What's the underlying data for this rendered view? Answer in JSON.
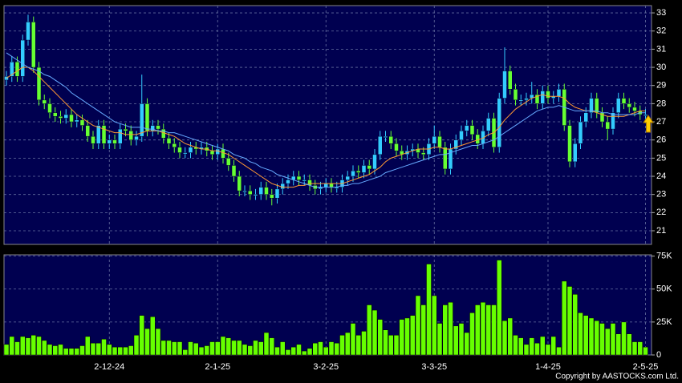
{
  "chart_data": [
    {
      "type": "candlestick",
      "up_color": "#33ccff",
      "down_color": "#66ff33",
      "open": [
        29.3,
        29.5,
        30.3,
        29.5,
        31.5,
        32.5,
        30,
        28.2,
        28,
        27.5,
        27.3,
        27.2,
        27.4,
        27,
        27.1,
        26.8,
        26.2,
        25.8,
        26.8,
        25.8,
        26,
        25.8,
        26.6,
        26.5,
        26,
        26.2,
        28,
        26.5,
        26.8,
        26.6,
        26.1,
        25.8,
        25.6,
        25.3,
        25.3,
        25.6,
        25.5,
        25.6,
        25.4,
        25.2,
        25.5,
        25,
        24.6,
        24,
        23.2,
        23.2,
        23,
        23,
        23.4,
        23,
        22.8,
        23.3,
        23.6,
        23.8,
        24,
        23.8,
        23.8,
        23.5,
        23.3,
        23.4,
        23.6,
        23.4,
        23.4,
        23.8,
        24,
        24.3,
        24.2,
        24.6,
        24.4,
        25.2,
        26.2,
        26.2,
        25.8,
        25.4,
        25.2,
        25.4,
        25.5,
        25.3,
        25.2,
        25.8,
        26.2,
        25.6,
        24.4,
        25.5,
        26,
        26.5,
        26.8,
        26.3,
        25.8,
        26.5,
        27.2,
        25.6,
        28.3,
        29.8,
        28.8,
        28.2,
        28.2,
        28.3,
        28.5,
        28,
        28.7,
        28.3,
        28.4,
        28.8,
        26.8,
        24.8,
        25.8,
        27,
        27.5,
        28.3,
        27.5,
        27,
        26.6,
        27.5,
        28.3,
        28,
        27.8,
        27.6,
        27.4
      ],
      "high": [
        29.8,
        30.6,
        30.6,
        31.8,
        32.9,
        32.8,
        30.3,
        28.5,
        28.3,
        27.8,
        27.6,
        27.7,
        27.7,
        27.4,
        27.4,
        27.1,
        26.5,
        27.1,
        27.1,
        26.3,
        26.3,
        26.9,
        26.9,
        26.8,
        26.5,
        29.6,
        28.3,
        27.1,
        27.1,
        26.9,
        26.4,
        26.1,
        25.9,
        25.6,
        25.9,
        25.9,
        25.9,
        25.9,
        25.7,
        25.8,
        25.8,
        25.3,
        24.9,
        24.3,
        23.5,
        23.5,
        23.3,
        23.7,
        23.7,
        23.3,
        23.6,
        23.9,
        24.1,
        24.3,
        24.3,
        24.1,
        24.1,
        23.8,
        23.7,
        23.9,
        23.9,
        23.7,
        24.1,
        24.3,
        24.6,
        24.6,
        24.9,
        24.9,
        25.5,
        26.5,
        26.5,
        26.5,
        26.1,
        25.7,
        25.7,
        25.8,
        25.8,
        25.6,
        26.1,
        26.8,
        26.5,
        25.9,
        25.8,
        26.3,
        26.8,
        27.1,
        27.1,
        26.6,
        26.8,
        27.5,
        27.5,
        28.6,
        31.1,
        30.1,
        29.1,
        28.5,
        28.6,
        29.2,
        28.8,
        29.0,
        29.0,
        28.7,
        29.1,
        29.1,
        27.1,
        26.1,
        27.3,
        27.8,
        28.6,
        28.6,
        27.8,
        27.3,
        27.8,
        28.6,
        28.6,
        28.3,
        28.1,
        27.9,
        27.7
      ],
      "low": [
        29.0,
        29.2,
        29.2,
        29.2,
        31.2,
        29.7,
        27.9,
        27.7,
        27.2,
        27.0,
        26.9,
        26.9,
        26.7,
        26.7,
        26.5,
        25.9,
        25.5,
        25.5,
        25.5,
        25.5,
        25.5,
        25.5,
        26.2,
        25.7,
        25.7,
        25.9,
        26.2,
        26.2,
        26.3,
        25.8,
        25.5,
        25.3,
        25.0,
        25.0,
        25.0,
        25.2,
        25.2,
        25.1,
        24.9,
        24.9,
        24.7,
        24.3,
        23.7,
        22.9,
        22.9,
        22.7,
        22.7,
        22.7,
        22.7,
        22.4,
        22.5,
        23.0,
        23.3,
        23.5,
        23.5,
        23.5,
        23.2,
        23.0,
        23.0,
        23.1,
        23.1,
        23.1,
        23.1,
        23.5,
        23.7,
        23.9,
        23.9,
        24.1,
        24.1,
        24.9,
        25.9,
        25.5,
        25.1,
        24.9,
        24.9,
        25.1,
        25.0,
        24.9,
        24.9,
        25.5,
        25.3,
        24.1,
        24.1,
        25.2,
        25.7,
        26.2,
        26.0,
        25.5,
        25.5,
        26.2,
        25.3,
        25.3,
        28.0,
        28.5,
        27.9,
        27.9,
        27.9,
        28.0,
        27.7,
        27.7,
        28.0,
        28.0,
        28.1,
        26.5,
        24.5,
        24.5,
        25.5,
        26.7,
        27.2,
        27.2,
        26.7,
        26.0,
        26.3,
        27.2,
        27.7,
        27.5,
        27.3,
        27.1,
        27.1
      ],
      "close": [
        29.5,
        30.3,
        29.5,
        31.5,
        32.5,
        30,
        28.2,
        28,
        27.5,
        27.3,
        27.2,
        27.4,
        27,
        27.1,
        26.8,
        26.2,
        25.8,
        26.8,
        25.8,
        26,
        25.8,
        26.6,
        26.5,
        26,
        26.2,
        28,
        26.5,
        26.8,
        26.6,
        26.1,
        25.8,
        25.6,
        25.3,
        25.3,
        25.6,
        25.5,
        25.6,
        25.4,
        25.2,
        25.5,
        25,
        24.6,
        24,
        23.2,
        23.2,
        23,
        23,
        23.4,
        23,
        22.8,
        23.3,
        23.6,
        23.8,
        24,
        23.8,
        23.8,
        23.5,
        23.3,
        23.4,
        23.6,
        23.4,
        23.4,
        23.8,
        24,
        24.3,
        24.2,
        24.6,
        24.4,
        25.2,
        26.2,
        26.2,
        25.8,
        25.4,
        25.2,
        25.4,
        25.5,
        25.3,
        25.2,
        25.8,
        26.2,
        25.6,
        24.4,
        25.5,
        26,
        26.5,
        26.8,
        26.3,
        25.8,
        26.5,
        27.2,
        25.6,
        28.3,
        29.8,
        28.8,
        28.2,
        28.2,
        28.3,
        28.5,
        28,
        28.7,
        28.3,
        28.4,
        28.8,
        26.8,
        24.8,
        25.8,
        27,
        27.5,
        28.3,
        27.5,
        27,
        26.6,
        27.5,
        28.3,
        28,
        27.8,
        27.6,
        27.4,
        27.4
      ],
      "series": [
        {
          "color": "#ff9933",
          "values": [
            29.4,
            29.6,
            29.8,
            30.0,
            30.0,
            29.8,
            29.5,
            29.2,
            28.9,
            28.6,
            28.3,
            28.0,
            27.7,
            27.4,
            27.2,
            27.0,
            26.8,
            26.7,
            26.6,
            26.5,
            26.4,
            26.4,
            26.3,
            26.3,
            26.3,
            26.4,
            26.5,
            26.5,
            26.5,
            26.4,
            26.3,
            26.2,
            26.0,
            25.8,
            25.7,
            25.6,
            25.5,
            25.5,
            25.4,
            25.4,
            25.3,
            25.2,
            25.0,
            24.8,
            24.6,
            24.4,
            24.2,
            24.0,
            23.8,
            23.6,
            23.5,
            23.4,
            23.4,
            23.4,
            23.5,
            23.5,
            23.6,
            23.6,
            23.6,
            23.6,
            23.6,
            23.6,
            23.6,
            23.7,
            23.8,
            23.9,
            24.0,
            24.1,
            24.3,
            24.5,
            24.8,
            25.0,
            25.1,
            25.2,
            25.3,
            25.4,
            25.5,
            25.5,
            25.5,
            25.6,
            25.6,
            25.5,
            25.5,
            25.6,
            25.7,
            25.8,
            25.9,
            26.0,
            26.1,
            26.3,
            26.4,
            26.7,
            27.1,
            27.4,
            27.7,
            27.9,
            28.1,
            28.3,
            28.4,
            28.5,
            28.4,
            28.4,
            28.4,
            28.3,
            28.0,
            27.8,
            27.7,
            27.6,
            27.6,
            27.5,
            27.4,
            27.3,
            27.3,
            27.3,
            27.3,
            27.4,
            27.5,
            27.6,
            27.6
          ]
        },
        {
          "color": "#66aaff",
          "values": [
            30.8,
            30.6,
            30.4,
            30.2,
            30.0,
            29.9,
            29.8,
            29.6,
            29.5,
            29.3,
            29.1,
            28.9,
            28.6,
            28.4,
            28.2,
            28.0,
            27.8,
            27.6,
            27.4,
            27.2,
            27.0,
            26.9,
            26.8,
            26.7,
            26.7,
            26.7,
            26.6,
            26.6,
            26.5,
            26.5,
            26.4,
            26.4,
            26.3,
            26.2,
            26.1,
            26.0,
            25.9,
            25.8,
            25.7,
            25.6,
            25.5,
            25.4,
            25.2,
            25.1,
            25.0,
            24.8,
            24.7,
            24.5,
            24.4,
            24.3,
            24.1,
            24.0,
            23.9,
            23.8,
            23.7,
            23.6,
            23.5,
            23.4,
            23.4,
            23.4,
            23.4,
            23.4,
            23.5,
            23.5,
            23.6,
            23.6,
            23.7,
            23.8,
            23.9,
            24.0,
            24.2,
            24.3,
            24.4,
            24.5,
            24.6,
            24.7,
            24.8,
            24.9,
            25.0,
            25.1,
            25.2,
            25.2,
            25.3,
            25.4,
            25.5,
            25.6,
            25.7,
            25.7,
            25.8,
            25.9,
            26.0,
            26.2,
            26.4,
            26.6,
            26.8,
            27.0,
            27.2,
            27.4,
            27.6,
            27.7,
            27.8,
            27.8,
            27.9,
            27.8,
            27.7,
            27.6,
            27.6,
            27.6,
            27.6,
            27.6,
            27.5,
            27.5,
            27.4,
            27.4,
            27.4,
            27.4,
            27.4,
            27.5,
            27.5
          ]
        }
      ],
      "ylim": [
        20.25,
        33.4
      ],
      "yticks": [
        21,
        22,
        23,
        24,
        25,
        26,
        27,
        28,
        29,
        30,
        31,
        32,
        33
      ],
      "grid": true
    },
    {
      "type": "bar",
      "color": "#66ff00",
      "categories": [
        null,
        null,
        null,
        null,
        null,
        null,
        null,
        null,
        null,
        null,
        null,
        null,
        null,
        null,
        null,
        null,
        null,
        null,
        null,
        "2-12-24",
        null,
        null,
        null,
        null,
        null,
        null,
        null,
        null,
        null,
        null,
        null,
        null,
        null,
        null,
        null,
        null,
        null,
        null,
        null,
        "2-1-25",
        null,
        null,
        null,
        null,
        null,
        null,
        null,
        null,
        null,
        null,
        null,
        null,
        null,
        null,
        null,
        null,
        null,
        null,
        null,
        "3-2-25",
        null,
        null,
        null,
        null,
        null,
        null,
        null,
        null,
        null,
        null,
        null,
        null,
        null,
        null,
        null,
        null,
        null,
        null,
        null,
        "3-3-25",
        null,
        null,
        null,
        null,
        null,
        null,
        null,
        null,
        null,
        null,
        null,
        null,
        null,
        null,
        null,
        null,
        null,
        null,
        null,
        null,
        "1-4-25",
        null,
        null,
        null,
        null,
        null,
        null,
        null,
        null,
        null,
        null,
        null,
        null,
        null,
        null,
        null,
        null,
        null,
        "2-5-25"
      ],
      "values": [
        8000,
        14000,
        10000,
        14000,
        13000,
        15000,
        14000,
        11000,
        8000,
        7000,
        8000,
        5000,
        5000,
        5000,
        7000,
        14000,
        9000,
        9000,
        12000,
        8000,
        6000,
        6000,
        6000,
        7000,
        15000,
        30000,
        20000,
        29000,
        20000,
        11000,
        11000,
        10000,
        10000,
        4000,
        10000,
        9000,
        6000,
        7000,
        10000,
        10000,
        14000,
        13000,
        11000,
        11000,
        8000,
        7000,
        11000,
        10000,
        17000,
        13000,
        6000,
        10000,
        4000,
        6000,
        8000,
        3000,
        5000,
        9000,
        10000,
        6000,
        10000,
        9000,
        15000,
        17000,
        24000,
        15000,
        18000,
        38000,
        34000,
        27000,
        19000,
        15000,
        15000,
        27000,
        28000,
        30000,
        45000,
        38000,
        69000,
        45000,
        24000,
        38000,
        40000,
        22000,
        24000,
        17000,
        32000,
        38000,
        40000,
        38000,
        38000,
        72000,
        26000,
        28000,
        15000,
        13000,
        8000,
        13000,
        9000,
        14000,
        8000,
        14000,
        6000,
        56000,
        52000,
        46000,
        32000,
        30000,
        28000,
        26000,
        24000,
        20000,
        24000,
        16000,
        25000,
        16000,
        10000,
        10000,
        6000
      ],
      "ylim": [
        0,
        76000
      ],
      "yticks": [
        0,
        {
          "value": 25000,
          "label": "25K"
        },
        {
          "value": 50000,
          "label": "50K"
        },
        {
          "value": 75000,
          "label": "75K"
        }
      ],
      "grid": true
    }
  ],
  "copyright": "Copyright by AASTOCKS.com Ltd."
}
